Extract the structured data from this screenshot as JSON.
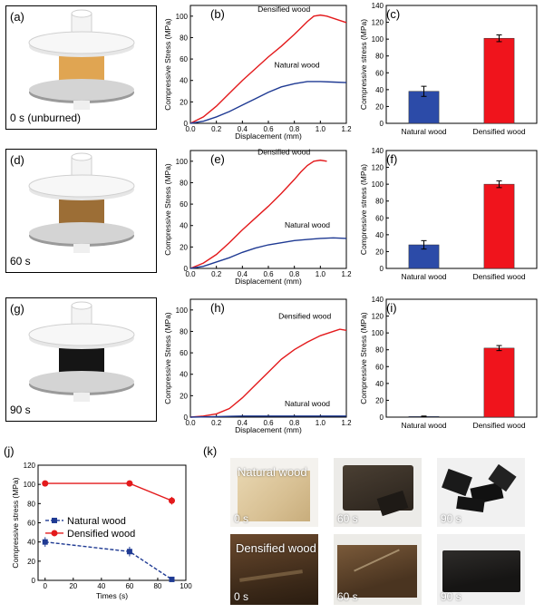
{
  "panels": {
    "a": {
      "label": "(a)",
      "caption": "0 s (unburned)",
      "block_color": "#e0a552"
    },
    "b": {
      "label": "(b)"
    },
    "c": {
      "label": "(c)"
    },
    "d": {
      "label": "(d)",
      "caption": "60 s",
      "block_color": "#9c6e36"
    },
    "e": {
      "label": "(e)"
    },
    "f": {
      "label": "(f)"
    },
    "g": {
      "label": "(g)",
      "caption": "90 s",
      "block_color": "#151515"
    },
    "h": {
      "label": "(h)"
    },
    "i": {
      "label": "(i)"
    },
    "j": {
      "label": "(j)"
    },
    "k": {
      "label": "(k)"
    }
  },
  "photos": {
    "natural_label": "Natural wood",
    "densified_label": "Densified wood",
    "times": [
      "0 s",
      "60 s",
      "90 s"
    ]
  },
  "colors": {
    "natural": "#1f3a93",
    "densified": "#e31a1c",
    "bar_natural": "#2c4ba8",
    "bar_densified": "#f0141c"
  },
  "chart_data": [
    {
      "id": "b",
      "type": "line",
      "xlabel": "Displacement (mm)",
      "ylabel": "Compressive Stress (MPa)",
      "xlim": [
        0.0,
        1.2
      ],
      "ylim": [
        0,
        110
      ],
      "xticks": [
        "0.0",
        "0.2",
        "0.4",
        "0.6",
        "0.8",
        "1.0",
        "1.2"
      ],
      "yticks": [
        "0",
        "20",
        "40",
        "60",
        "80",
        "100"
      ],
      "series": [
        {
          "name": "Densified wood",
          "x": [
            0,
            0.1,
            0.2,
            0.3,
            0.4,
            0.5,
            0.6,
            0.7,
            0.8,
            0.85,
            0.9,
            0.95,
            1.0,
            1.05,
            1.1,
            1.15,
            1.2
          ],
          "y": [
            0,
            6,
            16,
            28,
            40,
            51,
            62,
            72,
            83,
            89,
            95,
            100,
            101,
            100,
            98,
            96,
            94
          ]
        },
        {
          "name": "Natural wood",
          "x": [
            0,
            0.1,
            0.2,
            0.3,
            0.4,
            0.5,
            0.6,
            0.7,
            0.8,
            0.9,
            1.0,
            1.1,
            1.2
          ],
          "y": [
            0,
            2,
            6,
            11,
            17,
            23,
            29,
            34,
            37,
            39,
            39,
            38.5,
            38
          ]
        }
      ]
    },
    {
      "id": "c",
      "type": "bar",
      "ylabel": "Compressive stress (MPa)",
      "ylim": [
        0,
        140
      ],
      "yticks": [
        "0",
        "20",
        "40",
        "60",
        "80",
        "100",
        "120",
        "140"
      ],
      "categories": [
        "Natural wood",
        "Densified wood"
      ],
      "values": [
        38,
        101
      ],
      "errors": [
        6,
        4
      ]
    },
    {
      "id": "e",
      "type": "line",
      "xlabel": "Displacement (mm)",
      "ylabel": "Compressive Stress (MPa)",
      "xlim": [
        0.0,
        1.2
      ],
      "ylim": [
        0,
        110
      ],
      "xticks": [
        "0.0",
        "0.2",
        "0.4",
        "0.6",
        "0.8",
        "1.0",
        "1.2"
      ],
      "yticks": [
        "0",
        "20",
        "40",
        "60",
        "80",
        "100"
      ],
      "series": [
        {
          "name": "Densified wood",
          "x": [
            0,
            0.1,
            0.2,
            0.3,
            0.4,
            0.5,
            0.6,
            0.7,
            0.8,
            0.85,
            0.9,
            0.95,
            1.0,
            1.05
          ],
          "y": [
            0,
            5,
            13,
            24,
            36,
            47,
            58,
            70,
            83,
            90,
            96,
            100,
            101,
            100
          ]
        },
        {
          "name": "Natural wood",
          "x": [
            0,
            0.1,
            0.2,
            0.3,
            0.4,
            0.5,
            0.6,
            0.7,
            0.8,
            0.9,
            1.0,
            1.1,
            1.2
          ],
          "y": [
            0,
            2,
            6,
            10,
            15,
            19,
            22,
            24,
            26,
            27,
            28,
            28.5,
            28
          ]
        }
      ]
    },
    {
      "id": "f",
      "type": "bar",
      "ylabel": "Compressive stress (MPa)",
      "ylim": [
        0,
        140
      ],
      "yticks": [
        "0",
        "20",
        "40",
        "60",
        "80",
        "100",
        "120",
        "140"
      ],
      "categories": [
        "Natural wood",
        "Densified wood"
      ],
      "values": [
        28,
        100
      ],
      "errors": [
        5,
        4
      ]
    },
    {
      "id": "h",
      "type": "line",
      "xlabel": "Displacement (mm)",
      "ylabel": "Compressive Stress (MPa)",
      "xlim": [
        0.0,
        1.2
      ],
      "ylim": [
        0,
        110
      ],
      "xticks": [
        "0.0",
        "0.2",
        "0.4",
        "0.6",
        "0.8",
        "1.0",
        "1.2"
      ],
      "yticks": [
        "0",
        "20",
        "40",
        "60",
        "80",
        "100"
      ],
      "series": [
        {
          "name": "Densified wood",
          "x": [
            0,
            0.1,
            0.2,
            0.3,
            0.4,
            0.5,
            0.6,
            0.7,
            0.8,
            0.9,
            1.0,
            1.1,
            1.15,
            1.2
          ],
          "y": [
            0,
            1,
            3,
            8,
            18,
            30,
            42,
            54,
            63,
            70,
            76,
            80,
            82,
            81
          ]
        },
        {
          "name": "Natural wood",
          "x": [
            0,
            0.2,
            0.4,
            0.6,
            0.8,
            1.0,
            1.2
          ],
          "y": [
            0,
            0.5,
            1,
            1,
            1,
            1,
            1
          ]
        }
      ]
    },
    {
      "id": "i",
      "type": "bar",
      "ylabel": "Compressive Stress (MPa)",
      "ylim": [
        0,
        140
      ],
      "yticks": [
        "0",
        "20",
        "40",
        "60",
        "80",
        "100",
        "120",
        "140"
      ],
      "categories": [
        "Natural wood",
        "Densified wood"
      ],
      "values": [
        0.8,
        82
      ],
      "errors": [
        0.5,
        3
      ]
    },
    {
      "id": "j",
      "type": "line",
      "xlabel": "Times (s)",
      "ylabel": "Compressive stress (MPa)",
      "xlim": [
        -5,
        100
      ],
      "ylim": [
        0,
        120
      ],
      "xticks": [
        "0",
        "20",
        "40",
        "60",
        "80",
        "100"
      ],
      "yticks": [
        "0",
        "20",
        "40",
        "60",
        "80",
        "100",
        "120"
      ],
      "legend": "center-left",
      "series": [
        {
          "name": "Natural wood",
          "marker": "square",
          "dashed": true,
          "x": [
            0,
            60,
            90
          ],
          "y": [
            40,
            30,
            1
          ],
          "errors": [
            5,
            5,
            1
          ]
        },
        {
          "name": "Densified wood",
          "marker": "circle",
          "dashed": false,
          "x": [
            0,
            60,
            90
          ],
          "y": [
            101,
            101,
            83
          ],
          "errors": [
            3,
            3,
            4
          ]
        }
      ]
    }
  ]
}
